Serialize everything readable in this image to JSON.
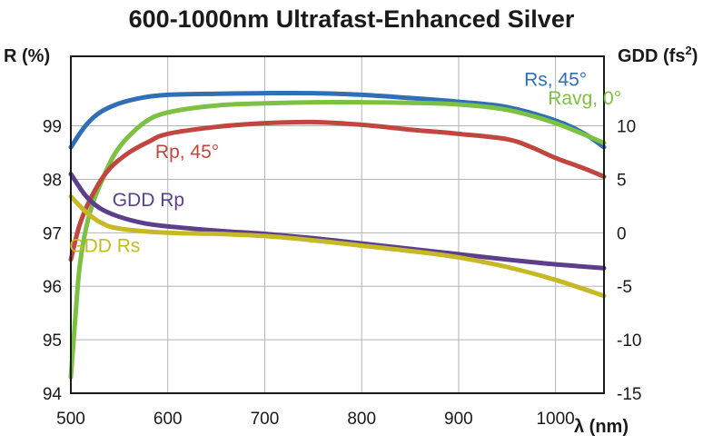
{
  "chart_data": {
    "type": "line",
    "title": "600-1000nm Ultrafast-Enhanced Silver",
    "xlabel": "λ (nm)",
    "ylabel_left": "R (%)",
    "ylabel_right_base": "GDD (fs",
    "ylabel_right_sup": "2",
    "ylabel_right_end": ")",
    "xlim": [
      500,
      1050
    ],
    "ylim_left": [
      94,
      100.3
    ],
    "ylim_right": [
      -15,
      16.5
    ],
    "grid": true,
    "x_ticks": [
      "500",
      "600",
      "700",
      "800",
      "900",
      "1000"
    ],
    "y_left_ticks": [
      "94",
      "95",
      "96",
      "97",
      "98",
      "99"
    ],
    "y_right_ticks": [
      "-15",
      "-10",
      "-5",
      "0",
      "5",
      "10"
    ],
    "series": [
      {
        "name": "Rs, 45°",
        "axis": "left",
        "color": "#2f6fb5",
        "label_at": [
          1000,
          99.75
        ],
        "points": [
          [
            500,
            98.6
          ],
          [
            515,
            99.0
          ],
          [
            530,
            99.25
          ],
          [
            550,
            99.42
          ],
          [
            575,
            99.53
          ],
          [
            600,
            99.58
          ],
          [
            650,
            99.6
          ],
          [
            700,
            99.61
          ],
          [
            750,
            99.61
          ],
          [
            800,
            99.58
          ],
          [
            850,
            99.52
          ],
          [
            900,
            99.45
          ],
          [
            950,
            99.35
          ],
          [
            1000,
            99.1
          ],
          [
            1030,
            98.85
          ],
          [
            1050,
            98.6
          ]
        ]
      },
      {
        "name": "Ravg, 0°",
        "axis": "left",
        "color": "#7cc142",
        "label_at": [
          1030,
          99.4
        ],
        "points": [
          [
            500,
            94.3
          ],
          [
            505,
            95.5
          ],
          [
            510,
            96.5
          ],
          [
            520,
            97.4
          ],
          [
            535,
            98.1
          ],
          [
            550,
            98.6
          ],
          [
            575,
            99.05
          ],
          [
            600,
            99.25
          ],
          [
            650,
            99.38
          ],
          [
            700,
            99.42
          ],
          [
            750,
            99.44
          ],
          [
            800,
            99.44
          ],
          [
            850,
            99.43
          ],
          [
            900,
            99.4
          ],
          [
            950,
            99.3
          ],
          [
            1000,
            99.05
          ],
          [
            1050,
            98.68
          ]
        ]
      },
      {
        "name": "Rp, 45°",
        "axis": "left",
        "color": "#c0463f",
        "label_at": [
          620,
          98.4
        ],
        "points": [
          [
            500,
            96.5
          ],
          [
            510,
            97.2
          ],
          [
            525,
            97.8
          ],
          [
            540,
            98.2
          ],
          [
            560,
            98.5
          ],
          [
            580,
            98.7
          ],
          [
            600,
            98.85
          ],
          [
            650,
            98.98
          ],
          [
            700,
            99.05
          ],
          [
            750,
            99.07
          ],
          [
            800,
            99.02
          ],
          [
            850,
            98.93
          ],
          [
            900,
            98.85
          ],
          [
            950,
            98.75
          ],
          [
            975,
            98.6
          ],
          [
            1000,
            98.4
          ],
          [
            1030,
            98.2
          ],
          [
            1050,
            98.05
          ]
        ]
      },
      {
        "name": "GDD Rp",
        "axis": "right",
        "color": "#5b3f8c",
        "label_at": [
          580,
          2.5
        ],
        "points": [
          [
            500,
            5.5
          ],
          [
            515,
            3.5
          ],
          [
            530,
            2.3
          ],
          [
            550,
            1.5
          ],
          [
            575,
            0.9
          ],
          [
            600,
            0.6
          ],
          [
            650,
            0.2
          ],
          [
            700,
            -0.1
          ],
          [
            750,
            -0.5
          ],
          [
            800,
            -1.0
          ],
          [
            850,
            -1.5
          ],
          [
            900,
            -2.0
          ],
          [
            950,
            -2.5
          ],
          [
            1000,
            -2.95
          ],
          [
            1050,
            -3.3
          ]
        ]
      },
      {
        "name": "GDD Rs",
        "axis": "right",
        "color": "#c7b925",
        "label_at": [
          535,
          -1.8
        ],
        "points": [
          [
            500,
            3.4
          ],
          [
            515,
            2.0
          ],
          [
            530,
            1.0
          ],
          [
            550,
            0.4
          ],
          [
            600,
            0.0
          ],
          [
            650,
            -0.1
          ],
          [
            700,
            -0.3
          ],
          [
            750,
            -0.7
          ],
          [
            800,
            -1.2
          ],
          [
            850,
            -1.7
          ],
          [
            900,
            -2.3
          ],
          [
            950,
            -3.2
          ],
          [
            1000,
            -4.4
          ],
          [
            1050,
            -5.9
          ]
        ]
      }
    ]
  }
}
